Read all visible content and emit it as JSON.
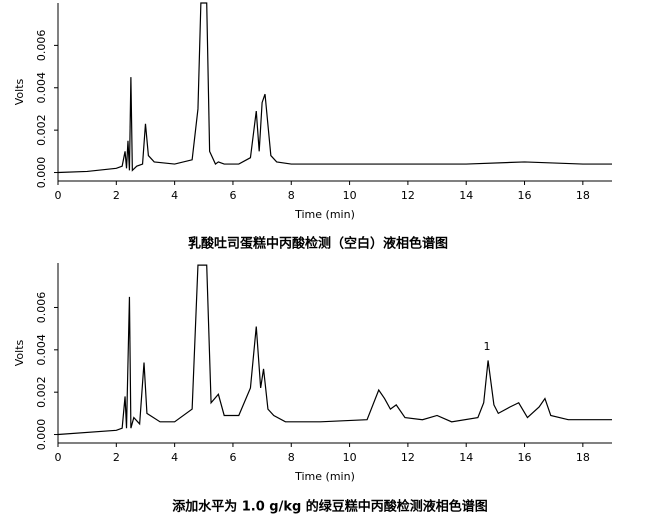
{
  "chart_data": [
    {
      "type": "line",
      "title": "乳酸吐司蛋糕中丙酸检测（空白）液相色谱图",
      "x_label": "Time (min)",
      "y_label": "Volts",
      "color": "#000000",
      "x": [
        0,
        1,
        2,
        2.2,
        2.3,
        2.35,
        2.4,
        2.45,
        2.5,
        2.55,
        2.7,
        2.9,
        3.0,
        3.1,
        3.3,
        4,
        4.6,
        4.8,
        4.9,
        5.1,
        5.2,
        5.4,
        5.5,
        5.7,
        6.2,
        6.6,
        6.8,
        6.9,
        7.0,
        7.1,
        7.3,
        7.5,
        8,
        10,
        12,
        14,
        16,
        18,
        19
      ],
      "values": [
        0,
        5e-05,
        0.0002,
        0.0003,
        0.001,
        0.0002,
        0.0015,
        0.0001,
        0.0045,
        0.0001,
        0.0003,
        0.0004,
        0.0023,
        0.0008,
        0.0005,
        0.0004,
        0.0006,
        0.003,
        0.008,
        0.008,
        0.001,
        0.0004,
        0.0005,
        0.0004,
        0.0004,
        0.0007,
        0.0029,
        0.001,
        0.0033,
        0.0037,
        0.0008,
        0.0005,
        0.0004,
        0.0004,
        0.0004,
        0.0004,
        0.0005,
        0.0004,
        0.0004
      ],
      "xlim": [
        0,
        19
      ],
      "ylim": [
        -0.0004,
        0.008
      ],
      "xticks": [
        0,
        2,
        4,
        6,
        8,
        10,
        12,
        14,
        16,
        18
      ],
      "yticks": [
        {
          "value": 0,
          "label": "0.000"
        },
        {
          "value": 0.002,
          "label": "0.002"
        },
        {
          "value": 0.004,
          "label": "0.004"
        },
        {
          "value": 0.006,
          "label": "0.006"
        }
      ]
    },
    {
      "type": "line",
      "title": "添加水平为 1.0 g/kg 的绿豆糕中丙酸检测液相色谱图",
      "x_label": "Time (min)",
      "y_label": "Volts",
      "color": "#000000",
      "annotation": "1",
      "x": [
        0,
        2,
        2.2,
        2.3,
        2.35,
        2.45,
        2.5,
        2.6,
        2.8,
        2.95,
        3.05,
        3.5,
        4,
        4.6,
        4.8,
        5.1,
        5.25,
        5.5,
        5.7,
        6.2,
        6.6,
        6.8,
        6.95,
        7.05,
        7.2,
        7.4,
        7.8,
        9,
        10.6,
        11.0,
        11.2,
        11.4,
        11.6,
        11.9,
        12.5,
        13,
        13.5,
        14.4,
        14.6,
        14.75,
        14.95,
        15.1,
        15.5,
        15.8,
        16.1,
        16.5,
        16.7,
        16.9,
        17.5,
        19
      ],
      "values": [
        0,
        0.0002,
        0.0003,
        0.0018,
        0.0003,
        0.0065,
        0.0003,
        0.0008,
        0.0005,
        0.0034,
        0.001,
        0.0006,
        0.0006,
        0.0012,
        0.008,
        0.008,
        0.0015,
        0.0019,
        0.0009,
        0.0009,
        0.0022,
        0.0051,
        0.0022,
        0.0031,
        0.0012,
        0.0009,
        0.0006,
        0.0006,
        0.0007,
        0.0021,
        0.0017,
        0.0012,
        0.0014,
        0.0008,
        0.0007,
        0.0009,
        0.0006,
        0.0008,
        0.0015,
        0.0035,
        0.0014,
        0.001,
        0.0013,
        0.0015,
        0.0008,
        0.0013,
        0.0017,
        0.0009,
        0.0007,
        0.0007
      ],
      "xlim": [
        0,
        19
      ],
      "ylim": [
        -0.0004,
        0.0081
      ],
      "xticks": [
        0,
        2,
        4,
        6,
        8,
        10,
        12,
        14,
        16,
        18
      ],
      "yticks": [
        {
          "value": 0,
          "label": "0.000"
        },
        {
          "value": 0.002,
          "label": "0.002"
        },
        {
          "value": 0.004,
          "label": "0.004"
        },
        {
          "value": 0.006,
          "label": "0.006"
        }
      ]
    }
  ]
}
